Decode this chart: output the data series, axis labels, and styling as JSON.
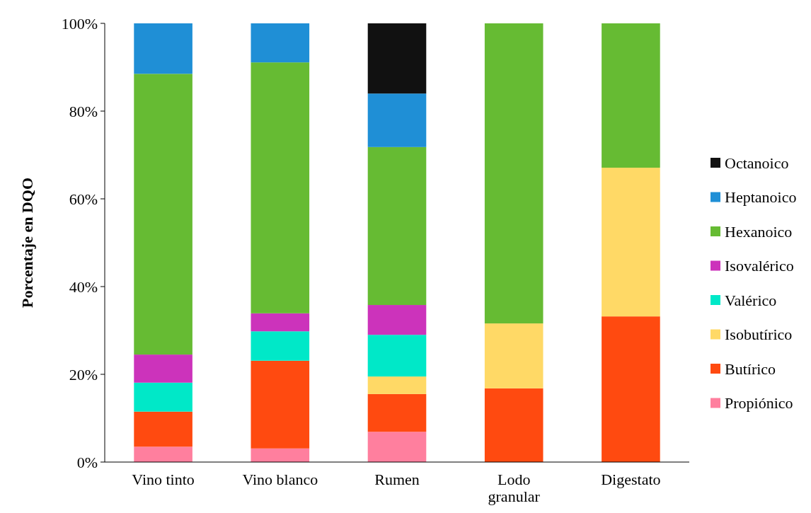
{
  "chart_data": {
    "type": "bar",
    "stacked": true,
    "ylabel": "Porcentaje en DQO",
    "categories": [
      "Vino tinto",
      "Vino blanco",
      "Rumen",
      "Lodo granular",
      "Digestato"
    ],
    "ylim": [
      0,
      100
    ],
    "yticks": [
      {
        "value": 0,
        "label": "0%"
      },
      {
        "value": 20,
        "label": "20%"
      },
      {
        "value": 40,
        "label": "40%"
      },
      {
        "value": 60,
        "label": "60%"
      },
      {
        "value": 80,
        "label": "80%"
      },
      {
        "value": 100,
        "label": "100%"
      }
    ],
    "legend": "right",
    "grid": false,
    "series": [
      {
        "name": "Propiónico",
        "color": "#ff7f9e",
        "values": [
          3.5,
          3.1,
          6.9,
          0,
          0
        ]
      },
      {
        "name": "Butírico",
        "color": "#ff4a10",
        "values": [
          8.0,
          20.0,
          8.6,
          16.8,
          33.2
        ]
      },
      {
        "name": "Isobutírico",
        "color": "#ffd966",
        "values": [
          0,
          0,
          4.0,
          14.8,
          33.9
        ]
      },
      {
        "name": "Valérico",
        "color": "#00e8c8",
        "values": [
          6.6,
          6.7,
          9.5,
          0,
          0
        ]
      },
      {
        "name": "Isovalérico",
        "color": "#cc33bb",
        "values": [
          6.4,
          4.1,
          6.8,
          0,
          0
        ]
      },
      {
        "name": "Hexanoico",
        "color": "#66bb33",
        "values": [
          64.0,
          57.2,
          36.0,
          68.4,
          32.9
        ]
      },
      {
        "name": "Heptanoico",
        "color": "#1f8fd6",
        "values": [
          11.5,
          8.9,
          12.2,
          0,
          0
        ]
      },
      {
        "name": "Octanoico",
        "color": "#111111",
        "values": [
          0,
          0,
          16.0,
          0,
          0
        ]
      }
    ]
  }
}
